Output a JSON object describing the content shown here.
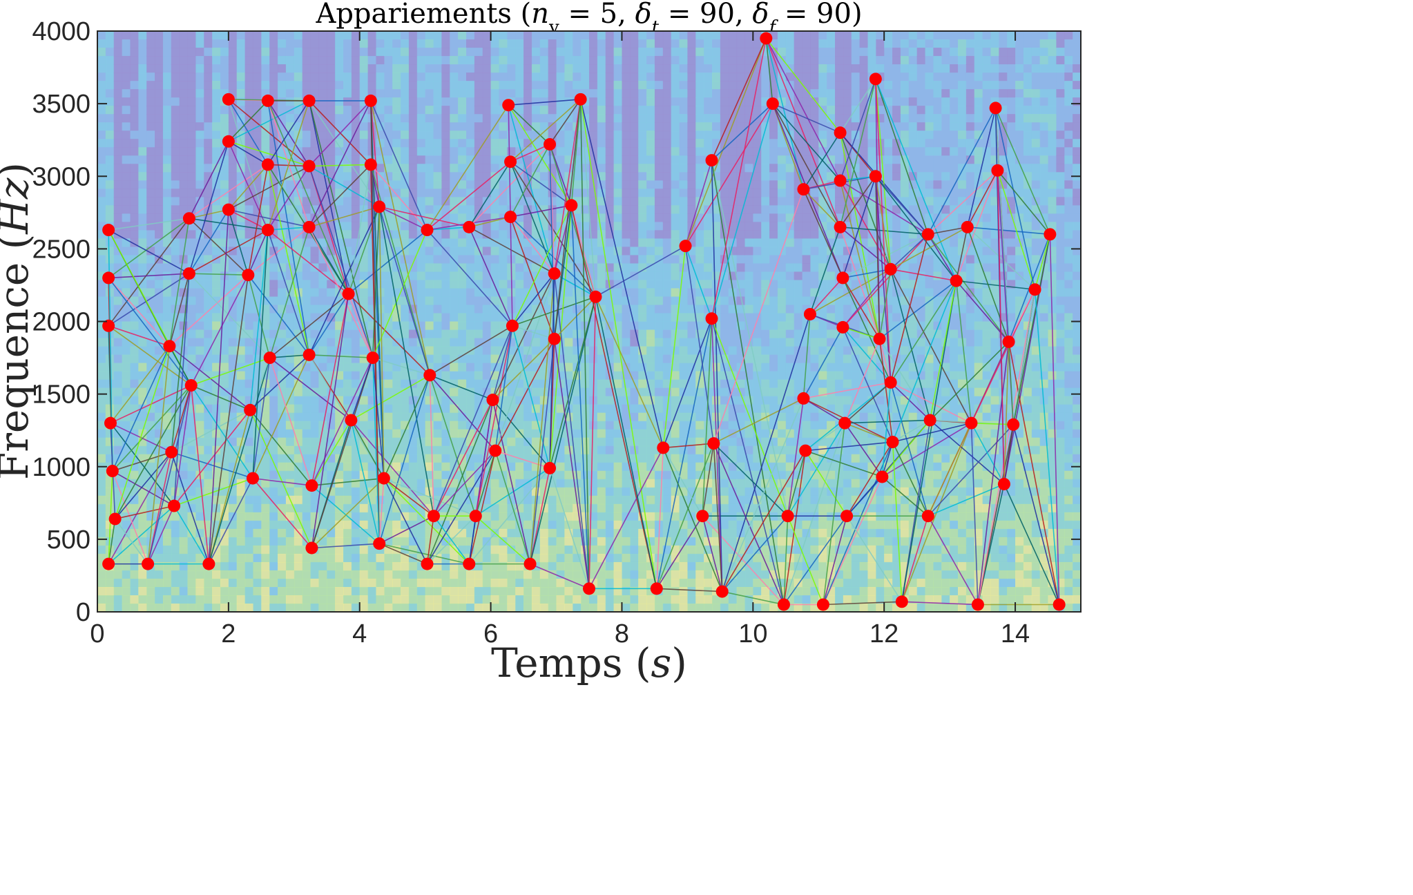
{
  "chart_data": {
    "type": "scatter",
    "title_parts": [
      "Appariements (",
      "n",
      "v",
      " = 5, ",
      "δ",
      "t",
      " = 90, ",
      "δ",
      "f",
      " = 90)"
    ],
    "xlabel_parts": [
      "Temps (",
      "s",
      ")"
    ],
    "ylabel_parts": [
      "Frequence (",
      "Hz",
      ")"
    ],
    "xlim": [
      0,
      15
    ],
    "ylim": [
      0,
      4000
    ],
    "xticks": [
      0,
      2,
      4,
      6,
      8,
      10,
      12,
      14
    ],
    "yticks": [
      0,
      500,
      1000,
      1500,
      2000,
      2500,
      3000,
      3500,
      4000
    ],
    "background": "spectrogram",
    "point_color": "#ff0000",
    "points": [
      [
        0.17,
        330
      ],
      [
        0.17,
        1970
      ],
      [
        0.17,
        2300
      ],
      [
        0.17,
        2630
      ],
      [
        0.2,
        1300
      ],
      [
        0.23,
        970
      ],
      [
        0.27,
        640
      ],
      [
        0.77,
        330
      ],
      [
        1.1,
        1830
      ],
      [
        1.13,
        1100
      ],
      [
        1.17,
        730
      ],
      [
        1.4,
        2710
      ],
      [
        1.4,
        2330
      ],
      [
        1.43,
        1560
      ],
      [
        1.7,
        330
      ],
      [
        2.0,
        3530
      ],
      [
        2.0,
        3240
      ],
      [
        2.0,
        2770
      ],
      [
        2.3,
        2320
      ],
      [
        2.33,
        1390
      ],
      [
        2.37,
        920
      ],
      [
        2.6,
        3520
      ],
      [
        2.6,
        3080
      ],
      [
        2.6,
        2630
      ],
      [
        2.63,
        1750
      ],
      [
        3.23,
        3520
      ],
      [
        3.23,
        3070
      ],
      [
        3.23,
        2650
      ],
      [
        3.23,
        1770
      ],
      [
        3.27,
        870
      ],
      [
        3.27,
        440
      ],
      [
        3.83,
        2190
      ],
      [
        3.87,
        1320
      ],
      [
        4.17,
        3520
      ],
      [
        4.17,
        3080
      ],
      [
        4.2,
        1750
      ],
      [
        4.3,
        2790
      ],
      [
        4.3,
        470
      ],
      [
        4.37,
        920
      ],
      [
        5.03,
        2630
      ],
      [
        5.07,
        1630
      ],
      [
        5.03,
        330
      ],
      [
        5.13,
        660
      ],
      [
        5.67,
        2650
      ],
      [
        5.67,
        330
      ],
      [
        5.77,
        660
      ],
      [
        6.03,
        1460
      ],
      [
        6.07,
        1110
      ],
      [
        6.27,
        3490
      ],
      [
        6.3,
        3100
      ],
      [
        6.3,
        2720
      ],
      [
        6.33,
        1970
      ],
      [
        6.6,
        330
      ],
      [
        6.9,
        3220
      ],
      [
        6.9,
        990
      ],
      [
        6.97,
        2330
      ],
      [
        6.97,
        1880
      ],
      [
        7.23,
        2800
      ],
      [
        7.37,
        3530
      ],
      [
        7.5,
        160
      ],
      [
        7.6,
        2170
      ],
      [
        8.53,
        160
      ],
      [
        8.63,
        1130
      ],
      [
        8.97,
        2520
      ],
      [
        9.23,
        660
      ],
      [
        9.37,
        3110
      ],
      [
        9.37,
        2020
      ],
      [
        9.4,
        1160
      ],
      [
        9.53,
        140
      ],
      [
        10.2,
        3950
      ],
      [
        10.3,
        3500
      ],
      [
        10.47,
        50
      ],
      [
        10.53,
        660
      ],
      [
        10.77,
        2910
      ],
      [
        10.77,
        1470
      ],
      [
        10.8,
        1110
      ],
      [
        10.87,
        2050
      ],
      [
        11.07,
        50
      ],
      [
        11.33,
        3300
      ],
      [
        11.33,
        2970
      ],
      [
        11.33,
        2650
      ],
      [
        11.37,
        2300
      ],
      [
        11.37,
        1960
      ],
      [
        11.4,
        1300
      ],
      [
        11.43,
        660
      ],
      [
        11.87,
        3670
      ],
      [
        11.87,
        3000
      ],
      [
        11.93,
        1880
      ],
      [
        11.97,
        930
      ],
      [
        12.1,
        2360
      ],
      [
        12.1,
        1580
      ],
      [
        12.13,
        1170
      ],
      [
        12.27,
        70
      ],
      [
        12.67,
        2600
      ],
      [
        12.7,
        1320
      ],
      [
        12.67,
        660
      ],
      [
        13.1,
        2280
      ],
      [
        13.27,
        2650
      ],
      [
        13.33,
        1300
      ],
      [
        13.43,
        50
      ],
      [
        13.7,
        3470
      ],
      [
        13.73,
        3040
      ],
      [
        13.83,
        880
      ],
      [
        13.9,
        1860
      ],
      [
        13.97,
        1290
      ],
      [
        14.3,
        2220
      ],
      [
        14.53,
        2600
      ],
      [
        14.67,
        50
      ]
    ]
  }
}
